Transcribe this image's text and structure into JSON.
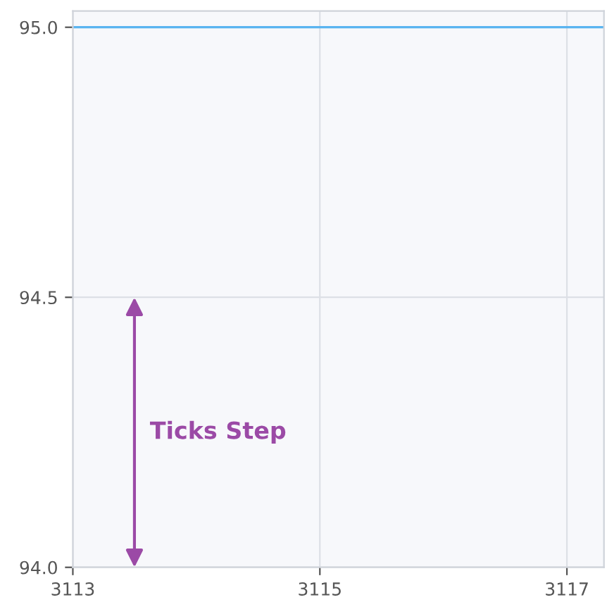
{
  "chart_data": {
    "type": "line",
    "x": [
      3113,
      3117.3
    ],
    "series": [
      {
        "color": "#5ab4f0",
        "values": [
          95.0,
          95.0
        ]
      }
    ],
    "xlim": [
      3113,
      3117.3
    ],
    "xticks": [
      3113,
      3115,
      3117
    ],
    "ylim": [
      94.0,
      95.03
    ],
    "yticks": [
      {
        "value": 94.0,
        "label": "94.0"
      },
      {
        "value": 94.5,
        "label": "94.5"
      },
      {
        "value": 95.0,
        "label": "95.0"
      }
    ],
    "grid": true,
    "marker": "none",
    "line_style": "solid",
    "annotations": [
      "Ticks Step"
    ]
  }
}
